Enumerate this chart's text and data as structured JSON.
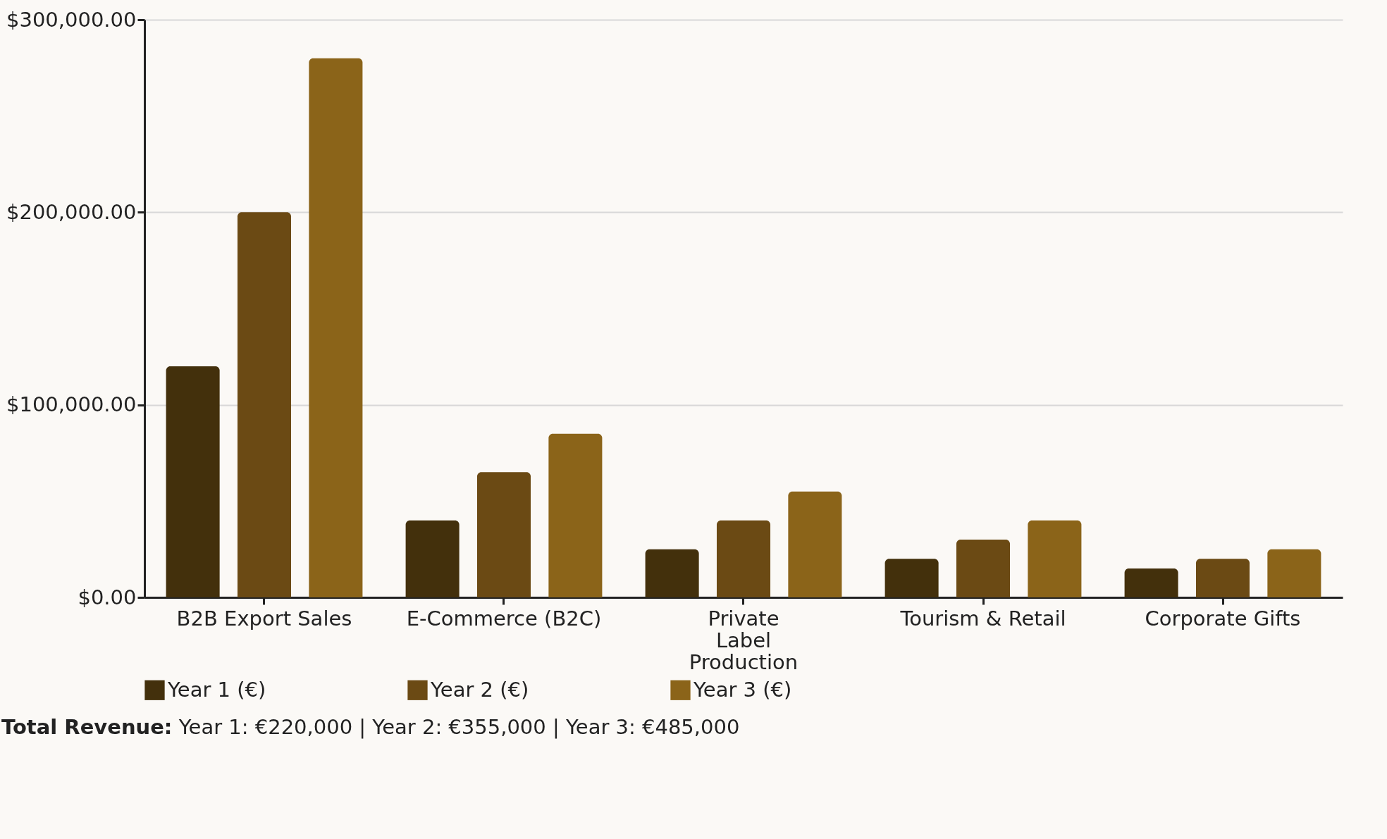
{
  "chart_data": {
    "type": "bar",
    "categories": [
      "B2B Export Sales",
      "E-Commerce (B2C)",
      "Private Label Production",
      "Tourism & Retail",
      "Corporate Gifts"
    ],
    "series": [
      {
        "name": "Year 1 (€)",
        "color": "#43300c",
        "values": [
          120000,
          40000,
          25000,
          20000,
          15000
        ]
      },
      {
        "name": "Year 2 (€)",
        "color": "#6b4a14",
        "values": [
          200000,
          65000,
          40000,
          30000,
          20000
        ]
      },
      {
        "name": "Year 3 (€)",
        "color": "#8b6419",
        "values": [
          280000,
          85000,
          55000,
          40000,
          25000
        ]
      }
    ],
    "ylim": [
      0,
      300000
    ],
    "yticks": [
      {
        "value": 0,
        "label": "$0.00"
      },
      {
        "value": 100000,
        "label": "$100,000.00"
      },
      {
        "value": 200000,
        "label": "$200,000.00"
      },
      {
        "value": 300000,
        "label": "$300,000.00"
      }
    ],
    "grid": "y",
    "legend": "bottom",
    "annotations": [
      "Total Revenue: Year 1: €220,000 | Year 2: €355,000 | Year 3: €485,000"
    ]
  }
}
